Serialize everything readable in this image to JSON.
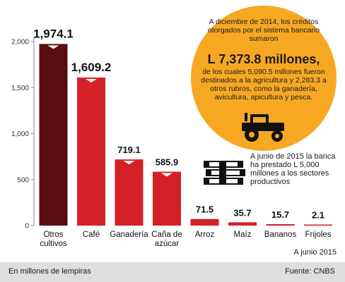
{
  "chart_data": {
    "type": "bar",
    "categories": [
      [
        "Otros",
        "cultivos"
      ],
      [
        "Café"
      ],
      [
        "Ganadería"
      ],
      [
        "Caña de",
        "azúcar"
      ],
      [
        "Arroz"
      ],
      [
        "Maíz"
      ],
      [
        "Bananos"
      ],
      [
        "Frijoles"
      ]
    ],
    "values": [
      1974.1,
      1609.2,
      719.1,
      585.9,
      71.5,
      35.7,
      15.7,
      2.1
    ],
    "value_labels": [
      "1,974.1",
      "1,609.2",
      "719.1",
      "585.9",
      "71.5",
      "35.7",
      "15.7",
      "2.1"
    ],
    "yticks": [
      "0",
      "500",
      "1,000",
      "1,500",
      "2,000"
    ],
    "ylim": [
      0,
      2000
    ],
    "grid": false,
    "colors": [
      "#5a0d0f",
      "#d42027",
      "#d42027",
      "#d42027",
      "#d42027",
      "#d42027",
      "#d42027",
      "#d42027"
    ]
  },
  "annotation": {
    "intro": "A diciembre de 2014, los créditos otorgados por el sistema bancario sumaron",
    "amount": "L 7,373.8 millones,",
    "detail": "de los cuales 5,090.5 millones fueron destinados a la agricultura y 2,283.3 a otros rubros, como la ganadería, avicultura, apicultura y pesca.",
    "circle_color": "#f7a823",
    "icon": "tractor-icon"
  },
  "note": {
    "text": "A junio de 2015 la banca ha prestado L 5,000 millones a los sectores productivos",
    "icon": "money-stack-icon"
  },
  "date_note": "A junio 2015",
  "footer": {
    "units": "En millones de lempiras",
    "source": "Fuente: CNBS"
  }
}
